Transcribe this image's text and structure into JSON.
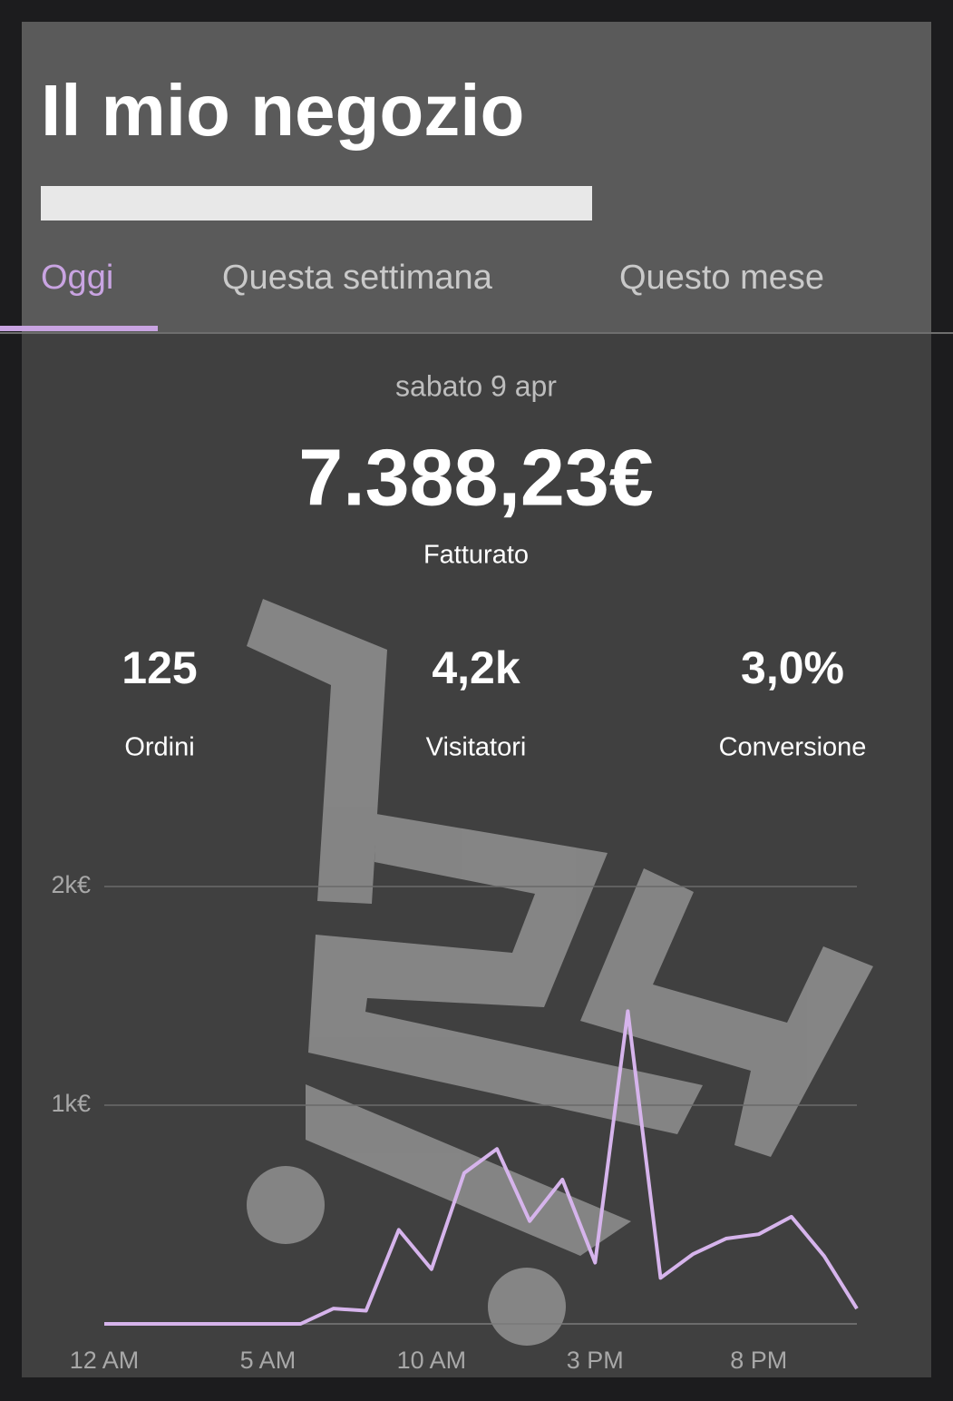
{
  "header": {
    "title": "Il mio negozio",
    "tabs": [
      "Oggi",
      "Questa settimana",
      "Questo mese"
    ],
    "active_tab": 0
  },
  "summary": {
    "date": "sabato 9 apr",
    "revenue": "7.388,23€",
    "revenue_label": "Fatturato",
    "stats": [
      {
        "value": "125",
        "label": "Ordini"
      },
      {
        "value": "4,2k",
        "label": "Visitatori"
      },
      {
        "value": "3,0%",
        "label": "Conversione"
      }
    ]
  },
  "chart_data": {
    "type": "line",
    "x": [
      0,
      1,
      2,
      3,
      4,
      5,
      6,
      7,
      8,
      9,
      10,
      11,
      12,
      13,
      14,
      15,
      16,
      17,
      18,
      19,
      20,
      21,
      22,
      23
    ],
    "series": [
      {
        "color": "#d6b4ec",
        "values": [
          0,
          0,
          0,
          0,
          0,
          0,
          0,
          70,
          60,
          430,
          250,
          690,
          800,
          470,
          660,
          280,
          1430,
          210,
          320,
          390,
          410,
          490,
          310,
          70
        ]
      }
    ],
    "xlim": [
      0,
      23
    ],
    "ylim": [
      0,
      2000
    ],
    "xticks": [
      {
        "value": 0,
        "label": "12 AM"
      },
      {
        "value": 5,
        "label": "5 AM"
      },
      {
        "value": 10,
        "label": "10 AM"
      },
      {
        "value": 15,
        "label": "3 PM"
      },
      {
        "value": 20,
        "label": "8 PM"
      }
    ],
    "yticks": [
      {
        "value": 1000,
        "label": "1k€"
      },
      {
        "value": 2000,
        "label": "2k€"
      }
    ],
    "grid": true
  }
}
